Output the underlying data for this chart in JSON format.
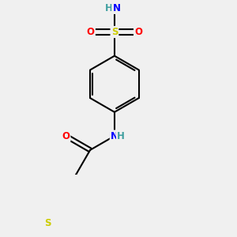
{
  "bg_color": "#f0f0f0",
  "bond_color": "#000000",
  "N_color": "#0000ff",
  "O_color": "#ff0000",
  "S_color": "#cccc00",
  "H_color": "#3f9f9f",
  "line_width": 1.5,
  "dpi": 100,
  "figsize": [
    3.0,
    3.0
  ],
  "xlim": [
    -2.5,
    3.5
  ],
  "ylim": [
    -4.5,
    3.5
  ]
}
